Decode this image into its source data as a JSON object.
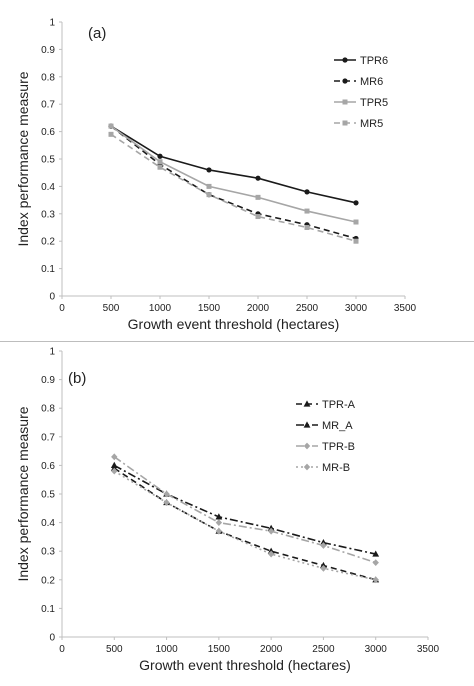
{
  "chart_data": [
    {
      "type": "line",
      "panel_label": "(a)",
      "xlabel": "Growth event threshold (hectares)",
      "ylabel": "Index performance measure",
      "xlim": [
        0,
        3500
      ],
      "ylim": [
        0,
        1
      ],
      "x_ticks": [
        "0",
        "500",
        "1000",
        "1500",
        "2000",
        "2500",
        "3000",
        "3500"
      ],
      "y_ticks": [
        "0",
        "0.1",
        "0.2",
        "0.3",
        "0.4",
        "0.5",
        "0.6",
        "0.7",
        "0.8",
        "0.9",
        "1"
      ],
      "grid": false,
      "legend_position": "right",
      "x": [
        500,
        1000,
        1500,
        2000,
        2500,
        3000
      ],
      "series": [
        {
          "name": "TPR6",
          "values": [
            0.62,
            0.51,
            0.46,
            0.43,
            0.38,
            0.34
          ],
          "color": "#1a1a1a",
          "dash": "solid",
          "marker": "circle"
        },
        {
          "name": "MR6",
          "values": [
            0.62,
            0.48,
            0.37,
            0.3,
            0.26,
            0.21
          ],
          "color": "#1a1a1a",
          "dash": "dashed",
          "marker": "circle"
        },
        {
          "name": "TPR5",
          "values": [
            0.62,
            0.49,
            0.4,
            0.36,
            0.31,
            0.27
          ],
          "color": "#a6a6a6",
          "dash": "solid",
          "marker": "square"
        },
        {
          "name": "MR5",
          "values": [
            0.59,
            0.47,
            0.37,
            0.29,
            0.25,
            0.2
          ],
          "color": "#a6a6a6",
          "dash": "dashed",
          "marker": "square"
        }
      ]
    },
    {
      "type": "line",
      "panel_label": "(b)",
      "xlabel": "Growth event threshold (hectares)",
      "ylabel": "Index performance measure",
      "xlim": [
        0,
        3500
      ],
      "ylim": [
        0,
        1
      ],
      "x_ticks": [
        "0",
        "500",
        "1000",
        "1500",
        "2000",
        "2500",
        "3000",
        "3500"
      ],
      "y_ticks": [
        "0",
        "0.1",
        "0.2",
        "0.3",
        "0.4",
        "0.5",
        "0.6",
        "0.7",
        "0.8",
        "0.9",
        "1"
      ],
      "grid": false,
      "legend_position": "right",
      "x": [
        500,
        1000,
        1500,
        2000,
        2500,
        3000
      ],
      "series": [
        {
          "name": "TPR-A",
          "values": [
            0.59,
            0.47,
            0.37,
            0.3,
            0.25,
            0.2
          ],
          "color": "#1a1a1a",
          "dash": "dashed",
          "marker": "triangle"
        },
        {
          "name": "MR_A",
          "values": [
            0.6,
            0.5,
            0.42,
            0.38,
            0.33,
            0.29
          ],
          "color": "#1a1a1a",
          "dash": "dashdot",
          "marker": "triangle"
        },
        {
          "name": "TPR-B",
          "values": [
            0.63,
            0.5,
            0.4,
            0.37,
            0.32,
            0.26
          ],
          "color": "#a6a6a6",
          "dash": "dashdot",
          "marker": "diamond"
        },
        {
          "name": "MR-B",
          "values": [
            0.58,
            0.47,
            0.37,
            0.29,
            0.24,
            0.2
          ],
          "color": "#a6a6a6",
          "dash": "dotted",
          "marker": "diamond"
        }
      ]
    }
  ]
}
